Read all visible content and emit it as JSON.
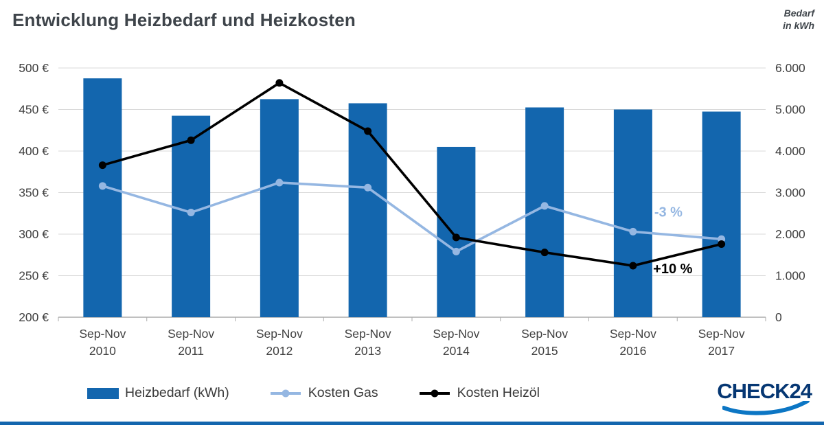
{
  "header": {
    "title": "Entwicklung Heizbedarf und Heizkosten"
  },
  "chart_data": {
    "type": "combo",
    "title": "Entwicklung Heizbedarf und Heizkosten",
    "category_prefix": "Sep-Nov",
    "categories": [
      "2010",
      "2011",
      "2012",
      "2013",
      "2014",
      "2015",
      "2016",
      "2017"
    ],
    "axes": {
      "left": {
        "min": 200,
        "max": 500,
        "step": 50,
        "suffix": " €",
        "tick_labels": [
          "200 €",
          "250 €",
          "300 €",
          "350 €",
          "400 €",
          "450 €",
          "500 €"
        ]
      },
      "right": {
        "min": 0,
        "max": 6000,
        "step": 1000,
        "title": "Bedarf in kWh",
        "title_lines": [
          "Bedarf",
          "in kWh"
        ],
        "tick_labels": [
          "0",
          "1.000",
          "2.000",
          "3.000",
          "4.000",
          "5.000",
          "6.000"
        ]
      }
    },
    "series": [
      {
        "key": "heizbedarf",
        "name": "Heizbedarf (kWh)",
        "type": "bar",
        "axis": "right",
        "color": "#1366AE",
        "values": [
          5750,
          4850,
          5250,
          5150,
          4100,
          5050,
          5000,
          4950
        ]
      },
      {
        "key": "gas",
        "name": "Kosten Gas",
        "type": "line",
        "axis": "left",
        "color": "#95B7E2",
        "values": [
          358,
          326,
          362,
          356,
          279,
          334,
          303,
          294
        ]
      },
      {
        "key": "heizoel",
        "name": "Kosten Heizöl",
        "type": "line",
        "axis": "left",
        "color": "#000000",
        "values": [
          383,
          413,
          482,
          424,
          296,
          278,
          262,
          288
        ]
      }
    ],
    "annotations": [
      {
        "text": "-3 %",
        "color": "#95B7E2",
        "ci": 6.4,
        "v": 321
      },
      {
        "text": "+10 %",
        "color": "#000000",
        "ci": 6.45,
        "v": 253
      }
    ],
    "grid": true,
    "legend_position": "bottom"
  },
  "footer": {
    "logo_text": "CHECK24"
  },
  "colors": {
    "bar_blue": "#1366AE",
    "gas_blue": "#95B7E2",
    "heizoel_black": "#000000",
    "grid_gray": "#D9D9D9",
    "axis_gray": "#ABABAB",
    "text_gray": "#404040",
    "title_gray": "#3E444A",
    "logo_navy": "#063773",
    "logo_swoosh": "#0C76C4",
    "bottom_bar": "#1366AE"
  }
}
